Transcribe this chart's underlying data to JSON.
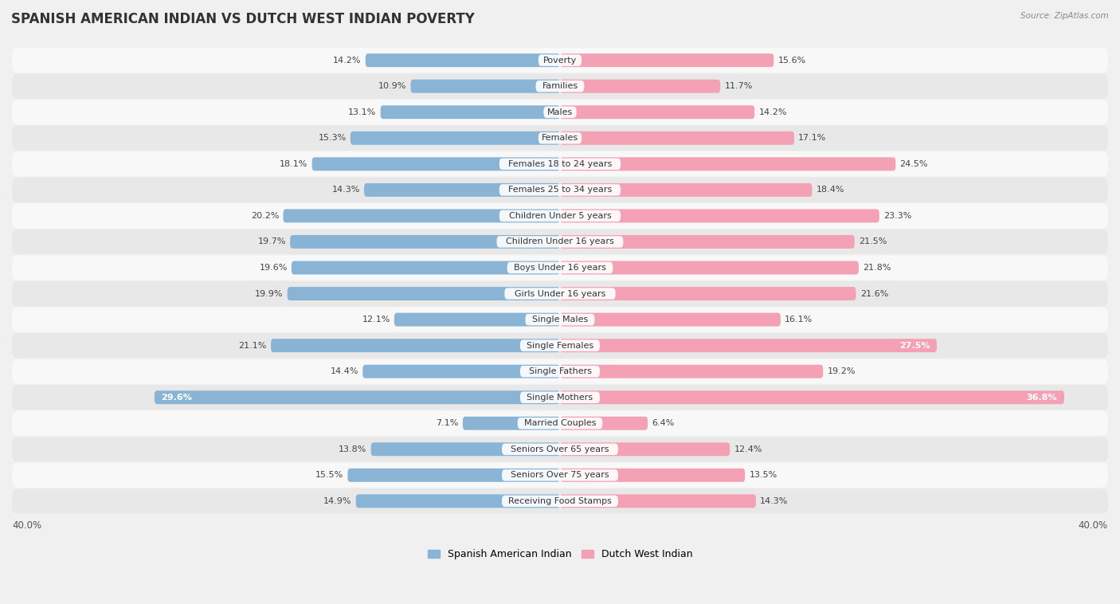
{
  "title": "SPANISH AMERICAN INDIAN VS DUTCH WEST INDIAN POVERTY",
  "source": "Source: ZipAtlas.com",
  "categories": [
    "Poverty",
    "Families",
    "Males",
    "Females",
    "Females 18 to 24 years",
    "Females 25 to 34 years",
    "Children Under 5 years",
    "Children Under 16 years",
    "Boys Under 16 years",
    "Girls Under 16 years",
    "Single Males",
    "Single Females",
    "Single Fathers",
    "Single Mothers",
    "Married Couples",
    "Seniors Over 65 years",
    "Seniors Over 75 years",
    "Receiving Food Stamps"
  ],
  "left_values": [
    14.2,
    10.9,
    13.1,
    15.3,
    18.1,
    14.3,
    20.2,
    19.7,
    19.6,
    19.9,
    12.1,
    21.1,
    14.4,
    29.6,
    7.1,
    13.8,
    15.5,
    14.9
  ],
  "right_values": [
    15.6,
    11.7,
    14.2,
    17.1,
    24.5,
    18.4,
    23.3,
    21.5,
    21.8,
    21.6,
    16.1,
    27.5,
    19.2,
    36.8,
    6.4,
    12.4,
    13.5,
    14.3
  ],
  "left_color": "#8ab4d5",
  "right_color": "#f4a0b5",
  "left_highlight_color": "#6a9ec5",
  "right_highlight_color": "#ee7090",
  "left_label": "Spanish American Indian",
  "right_label": "Dutch West Indian",
  "axis_max": 40.0,
  "bar_height": 0.52,
  "bg_color": "#f0f0f0",
  "row_even_color": "#f8f8f8",
  "row_odd_color": "#e8e8e8",
  "title_fontsize": 12,
  "label_fontsize": 8.5,
  "value_fontsize": 8,
  "cat_label_fontsize": 8
}
